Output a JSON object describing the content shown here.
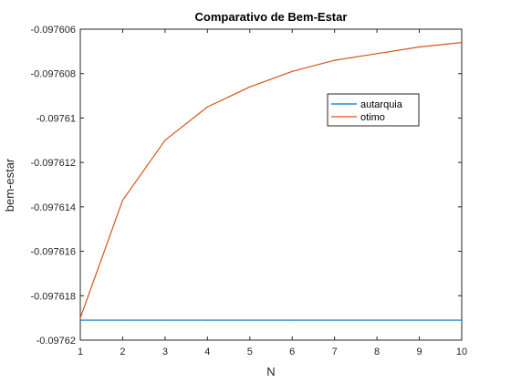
{
  "chart_data": {
    "type": "line",
    "title": "Comparativo de Bem-Estar",
    "xlabel": "N",
    "ylabel": "bem-estar",
    "x": [
      1,
      2,
      3,
      4,
      5,
      6,
      7,
      8,
      9,
      10
    ],
    "xlim": [
      1,
      10
    ],
    "ylim": [
      -0.09762,
      -0.097606
    ],
    "xticks": [
      "1",
      "2",
      "3",
      "4",
      "5",
      "6",
      "7",
      "8",
      "9",
      "10"
    ],
    "yticks": [
      {
        "value": -0.097606,
        "label": "-0.097606"
      },
      {
        "value": -0.097608,
        "label": "-0.097608"
      },
      {
        "value": -0.09761,
        "label": "-0.09761"
      },
      {
        "value": -0.097612,
        "label": "-0.097612"
      },
      {
        "value": -0.097614,
        "label": "-0.097614"
      },
      {
        "value": -0.097616,
        "label": "-0.097616"
      },
      {
        "value": -0.097618,
        "label": "-0.097618"
      },
      {
        "value": -0.09762,
        "label": "-0.09762"
      }
    ],
    "grid": false,
    "legend_position": "top-right",
    "series": [
      {
        "name": "autarquia",
        "color": "#0072BD",
        "values": [
          -0.0976191,
          -0.0976191,
          -0.0976191,
          -0.0976191,
          -0.0976191,
          -0.0976191,
          -0.0976191,
          -0.0976191,
          -0.0976191,
          -0.0976191
        ]
      },
      {
        "name": "otimo",
        "color": "#D95319",
        "values": [
          -0.097619,
          -0.0976137,
          -0.097611,
          -0.0976095,
          -0.0976086,
          -0.0976079,
          -0.0976074,
          -0.0976071,
          -0.0976068,
          -0.0976066
        ]
      }
    ]
  }
}
